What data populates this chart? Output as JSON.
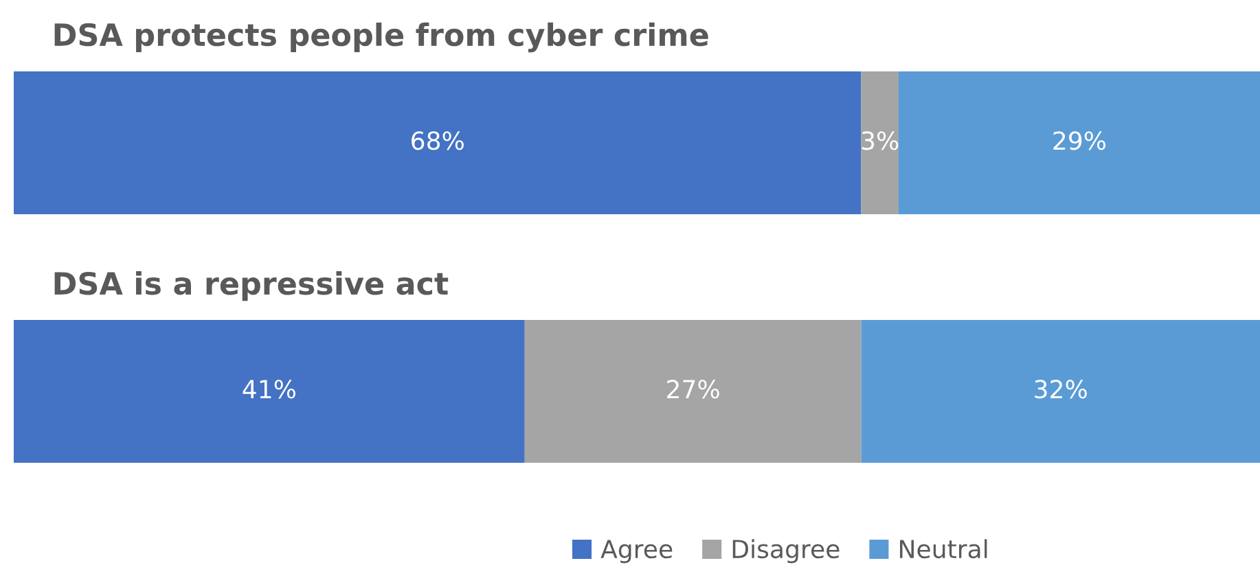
{
  "chart_data": {
    "type": "bar",
    "orientation": "horizontal",
    "stacked": true,
    "legend": "bottom",
    "categories": [
      "DSA protects people from cyber crime",
      "DSA is a repressive act"
    ],
    "series": [
      {
        "name": "Agree",
        "color": "#4472c4",
        "values": [
          68,
          41
        ],
        "value_labels": [
          "68%",
          "41%"
        ]
      },
      {
        "name": "Disagree",
        "color": "#a5a5a5",
        "values": [
          3,
          27
        ],
        "value_labels": [
          "3%",
          "27%"
        ]
      },
      {
        "name": "Neutral",
        "color": "#5b9bd5",
        "values": [
          29,
          32
        ],
        "value_labels": [
          "29%",
          "32%"
        ]
      }
    ]
  }
}
